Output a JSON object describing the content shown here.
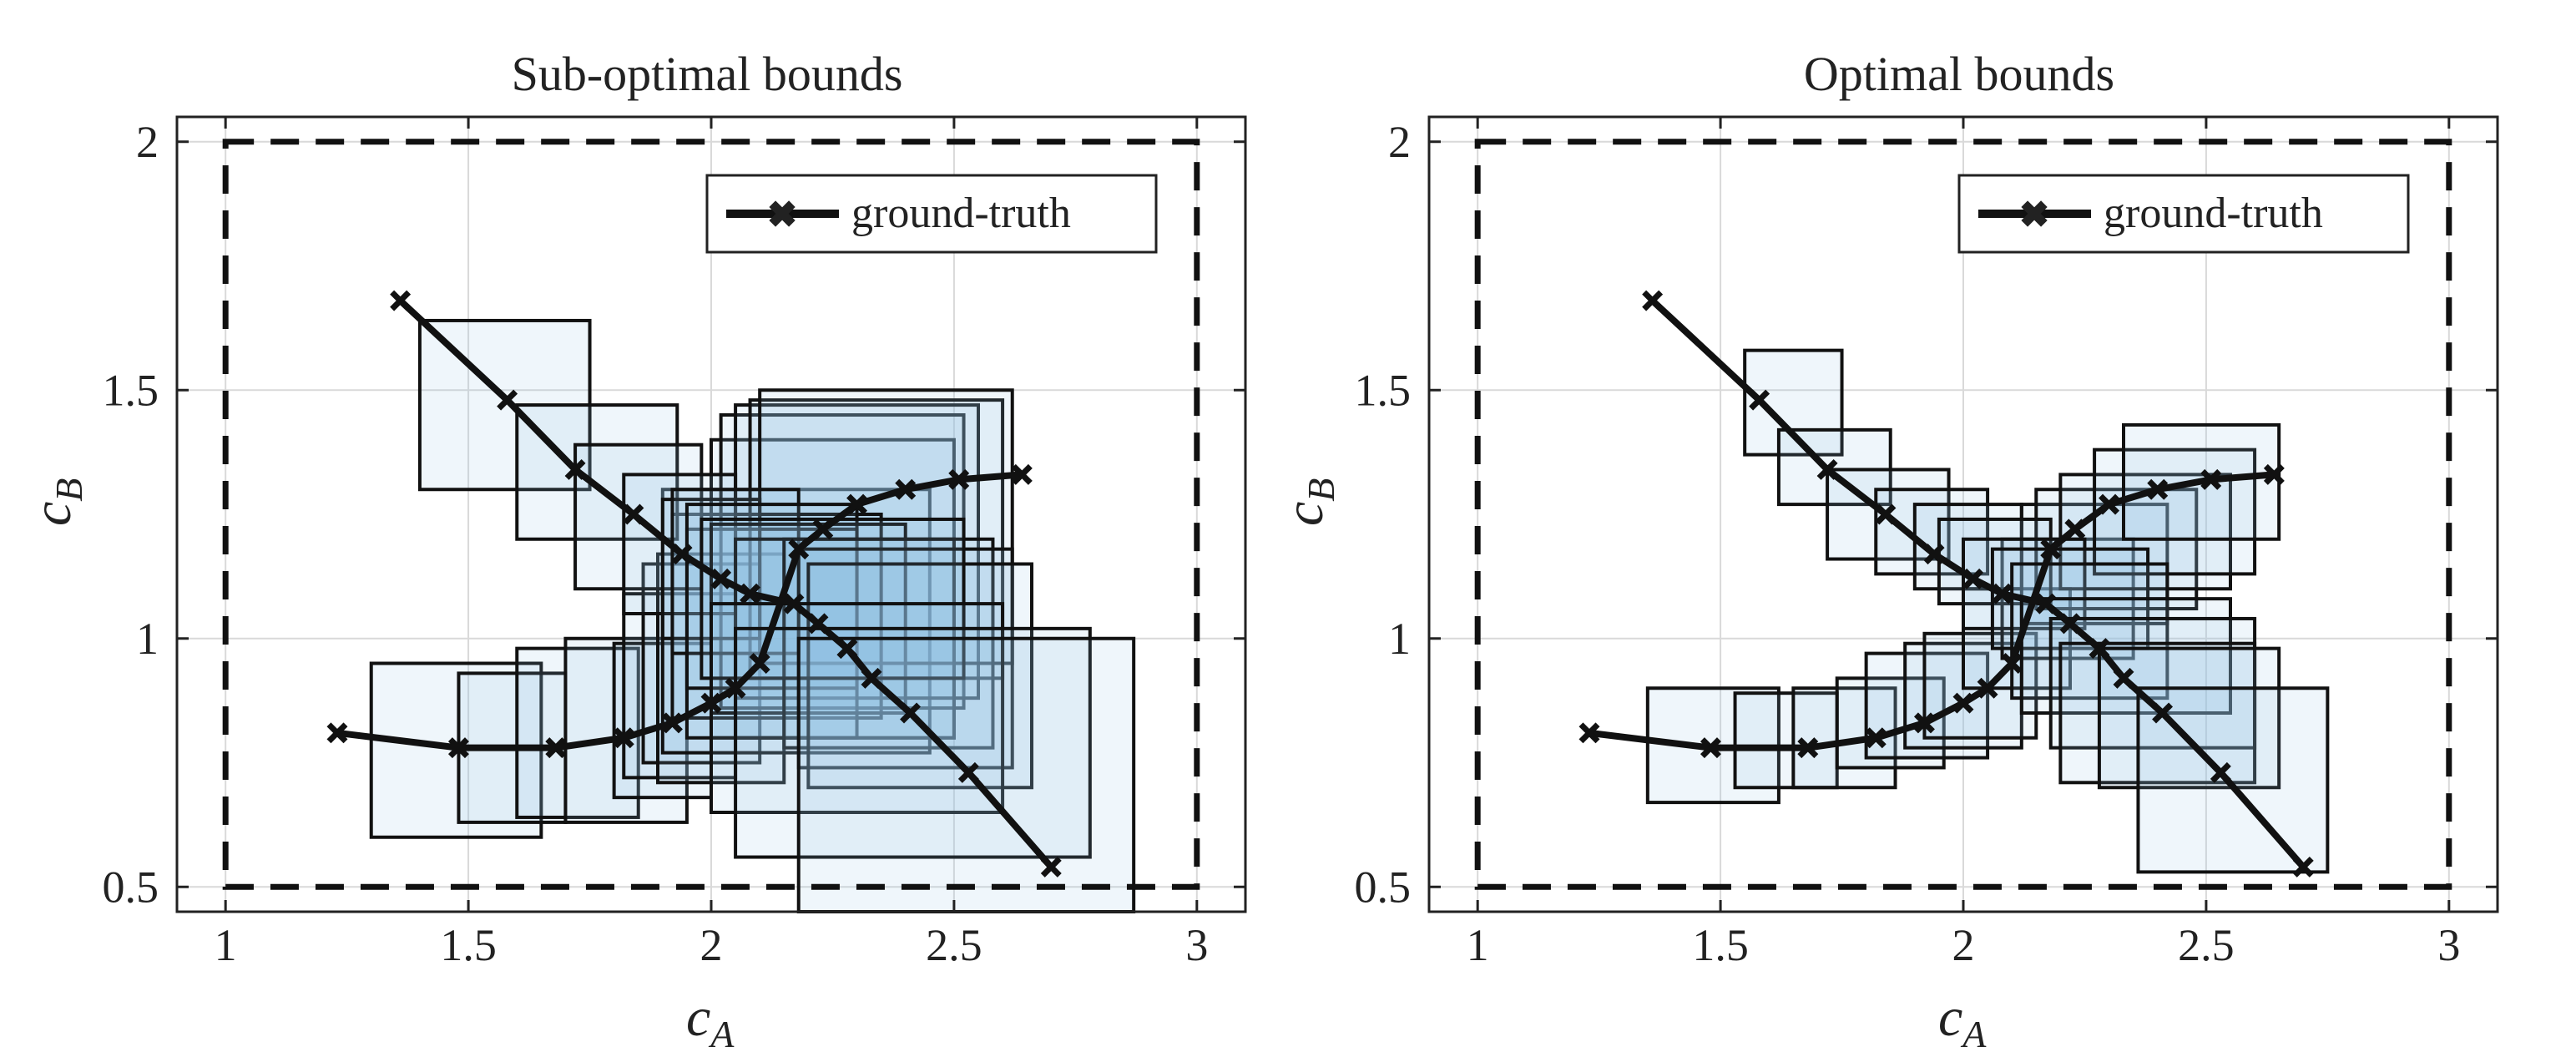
{
  "figure": {
    "background": "#ffffff",
    "box_fill": "#8fbfe2",
    "box_fill_opacity": 0.14,
    "box_stroke": "#111111",
    "grid_color": "#d9d9d9"
  },
  "chart_data": [
    {
      "type": "line",
      "title": "Sub-optimal bounds",
      "xlabel": "c_A",
      "ylabel": "c_B",
      "xlim": [
        0.9,
        3.1
      ],
      "ylim": [
        0.45,
        2.05
      ],
      "xticks": [
        1,
        1.5,
        2,
        2.5,
        3
      ],
      "xtick_labels": [
        "1",
        "1.5",
        "2",
        "2.5",
        "3"
      ],
      "yticks": [
        0.5,
        1,
        1.5,
        2
      ],
      "ytick_labels": [
        "0.5",
        "1",
        "1.5",
        "2"
      ],
      "grid": true,
      "legend": {
        "location": "top-right",
        "entries": [
          "ground-truth"
        ]
      },
      "outer_bounds": {
        "x": [
          1,
          3
        ],
        "y": [
          0.5,
          2
        ],
        "style": "dashed"
      },
      "series": [
        {
          "name": "ground-truth",
          "x": [
            1.23,
            1.48,
            1.68,
            1.82,
            1.92,
            2.0,
            2.05,
            2.1,
            2.18,
            2.23,
            2.3,
            2.4,
            2.51,
            2.64
          ],
          "y": [
            0.81,
            0.78,
            0.78,
            0.8,
            0.83,
            0.87,
            0.9,
            0.95,
            1.18,
            1.22,
            1.27,
            1.3,
            1.32,
            1.33
          ]
        },
        {
          "name": "ground-truth",
          "x": [
            1.36,
            1.58,
            1.72,
            1.84,
            1.94,
            2.02,
            2.08,
            2.17,
            2.22,
            2.28,
            2.33,
            2.41,
            2.53,
            2.7
          ],
          "y": [
            1.68,
            1.48,
            1.34,
            1.25,
            1.17,
            1.12,
            1.09,
            1.07,
            1.03,
            0.98,
            0.92,
            0.85,
            0.73,
            0.54
          ]
        }
      ],
      "boxes": [
        [
          1.3,
          0.6,
          1.65,
          0.95
        ],
        [
          1.48,
          0.63,
          1.7,
          0.93
        ],
        [
          1.6,
          0.64,
          1.85,
          0.98
        ],
        [
          1.7,
          0.63,
          1.95,
          1.0
        ],
        [
          1.8,
          0.68,
          2.0,
          0.99
        ],
        [
          1.82,
          0.72,
          2.05,
          1.09
        ],
        [
          1.86,
          0.75,
          2.1,
          1.15
        ],
        [
          1.89,
          0.71,
          2.15,
          1.17
        ],
        [
          1.9,
          0.77,
          2.45,
          1.3
        ],
        [
          2.0,
          0.8,
          2.5,
          1.4
        ],
        [
          2.02,
          0.86,
          2.52,
          1.45
        ],
        [
          2.05,
          0.88,
          2.55,
          1.47
        ],
        [
          2.08,
          0.92,
          2.6,
          1.48
        ],
        [
          2.1,
          0.95,
          2.62,
          1.5
        ],
        [
          1.92,
          0.84,
          2.35,
          1.25
        ],
        [
          1.95,
          0.8,
          2.3,
          1.22
        ],
        [
          1.4,
          1.3,
          1.75,
          1.64
        ],
        [
          1.6,
          1.2,
          1.93,
          1.47
        ],
        [
          1.72,
          1.1,
          1.98,
          1.39
        ],
        [
          1.82,
          1.05,
          2.05,
          1.33
        ],
        [
          1.9,
          1.0,
          2.1,
          1.28
        ],
        [
          1.92,
          0.97,
          2.18,
          1.3
        ],
        [
          1.95,
          0.9,
          2.3,
          1.27
        ],
        [
          2.0,
          0.85,
          2.4,
          1.23
        ],
        [
          2.05,
          0.8,
          2.5,
          1.2
        ],
        [
          2.15,
          0.78,
          2.58,
          1.2
        ],
        [
          2.18,
          0.74,
          2.62,
          1.18
        ],
        [
          2.2,
          0.7,
          2.66,
          1.15
        ],
        [
          1.98,
          0.92,
          2.52,
          1.24
        ],
        [
          2.0,
          0.65,
          2.6,
          1.07
        ],
        [
          2.05,
          0.56,
          2.78,
          1.02
        ],
        [
          2.18,
          0.45,
          2.87,
          1.0
        ]
      ]
    },
    {
      "type": "line",
      "title": "Optimal bounds",
      "xlabel": "c_A",
      "ylabel": "c_B",
      "xlim": [
        0.9,
        3.1
      ],
      "ylim": [
        0.45,
        2.05
      ],
      "xticks": [
        1,
        1.5,
        2,
        2.5,
        3
      ],
      "xtick_labels": [
        "1",
        "1.5",
        "2",
        "2.5",
        "3"
      ],
      "yticks": [
        0.5,
        1,
        1.5,
        2
      ],
      "ytick_labels": [
        "0.5",
        "1",
        "1.5",
        "2"
      ],
      "grid": true,
      "legend": {
        "location": "top-right",
        "entries": [
          "ground-truth"
        ]
      },
      "outer_bounds": {
        "x": [
          1,
          3
        ],
        "y": [
          0.5,
          2
        ],
        "style": "dashed"
      },
      "series": [
        {
          "name": "ground-truth",
          "x": [
            1.23,
            1.48,
            1.68,
            1.82,
            1.92,
            2.0,
            2.05,
            2.1,
            2.18,
            2.23,
            2.3,
            2.4,
            2.51,
            2.64
          ],
          "y": [
            0.81,
            0.78,
            0.78,
            0.8,
            0.83,
            0.87,
            0.9,
            0.95,
            1.18,
            1.22,
            1.27,
            1.3,
            1.32,
            1.33
          ]
        },
        {
          "name": "ground-truth",
          "x": [
            1.36,
            1.58,
            1.72,
            1.84,
            1.94,
            2.02,
            2.08,
            2.17,
            2.22,
            2.28,
            2.33,
            2.41,
            2.53,
            2.7
          ],
          "y": [
            1.68,
            1.48,
            1.34,
            1.25,
            1.17,
            1.12,
            1.09,
            1.07,
            1.03,
            0.98,
            0.92,
            0.85,
            0.73,
            0.54
          ]
        }
      ],
      "boxes": [
        [
          1.35,
          0.67,
          1.62,
          0.9
        ],
        [
          1.53,
          0.7,
          1.74,
          0.89
        ],
        [
          1.65,
          0.7,
          1.86,
          0.9
        ],
        [
          1.74,
          0.74,
          1.96,
          0.92
        ],
        [
          1.8,
          0.76,
          2.05,
          0.97
        ],
        [
          1.88,
          0.78,
          2.12,
          0.99
        ],
        [
          1.92,
          0.8,
          2.15,
          1.01
        ],
        [
          2.0,
          0.9,
          2.22,
          1.1
        ],
        [
          2.08,
          0.96,
          2.35,
          1.2
        ],
        [
          2.12,
          1.03,
          2.42,
          1.27
        ],
        [
          2.15,
          1.06,
          2.48,
          1.3
        ],
        [
          2.2,
          1.1,
          2.55,
          1.33
        ],
        [
          2.27,
          1.13,
          2.6,
          1.38
        ],
        [
          2.33,
          1.2,
          2.65,
          1.43
        ],
        [
          1.55,
          1.37,
          1.75,
          1.58
        ],
        [
          1.62,
          1.27,
          1.85,
          1.42
        ],
        [
          1.72,
          1.16,
          1.97,
          1.34
        ],
        [
          1.82,
          1.13,
          2.05,
          1.3
        ],
        [
          1.9,
          1.1,
          2.12,
          1.27
        ],
        [
          1.95,
          1.07,
          2.18,
          1.24
        ],
        [
          2.0,
          1.02,
          2.25,
          1.2
        ],
        [
          2.06,
          0.98,
          2.38,
          1.18
        ],
        [
          2.1,
          0.88,
          2.42,
          1.15
        ],
        [
          2.12,
          0.85,
          2.55,
          1.08
        ],
        [
          2.18,
          0.78,
          2.6,
          1.04
        ],
        [
          2.2,
          0.71,
          2.6,
          0.99
        ],
        [
          2.28,
          0.7,
          2.65,
          0.98
        ],
        [
          2.36,
          0.53,
          2.75,
          0.9
        ]
      ]
    }
  ]
}
